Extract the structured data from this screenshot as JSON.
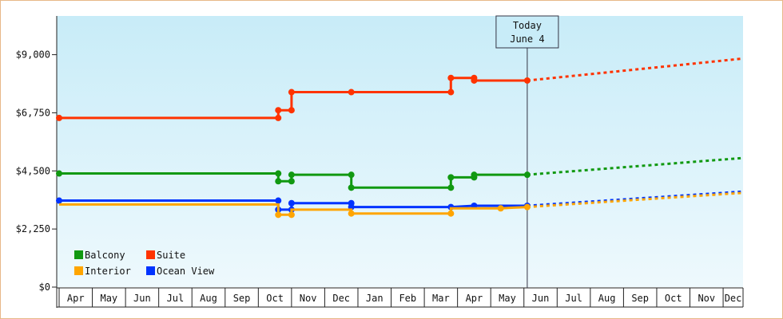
{
  "chart_data": {
    "type": "line",
    "step": true,
    "y_ticks": [
      {
        "value": 0,
        "label": "$0"
      },
      {
        "value": 2250,
        "label": "$2,250"
      },
      {
        "value": 4500,
        "label": "$4,500"
      },
      {
        "value": 6750,
        "label": "$6,750"
      },
      {
        "value": 9000,
        "label": "$9,000"
      }
    ],
    "ylim": [
      0,
      10500
    ],
    "months": [
      "Apr",
      "May",
      "Jun",
      "Jul",
      "Aug",
      "Sep",
      "Oct",
      "Nov",
      "Dec",
      "Jan",
      "Feb",
      "Mar",
      "Apr",
      "May",
      "Jun",
      "Jul",
      "Aug",
      "Sep",
      "Oct",
      "Nov",
      "Dec"
    ],
    "x_range": [
      0,
      20.6
    ],
    "today": {
      "line1": "Today",
      "line2": "June 4",
      "x": 14.1
    },
    "series": [
      {
        "name": "Suite",
        "color": "#ff3300",
        "points": [
          [
            0,
            6550
          ],
          [
            6.6,
            6550
          ],
          [
            6.6,
            6850
          ],
          [
            7.0,
            6850
          ],
          [
            7.0,
            7550
          ],
          [
            8.8,
            7550
          ],
          [
            11.8,
            7550
          ],
          [
            11.8,
            8100
          ],
          [
            12.5,
            8100
          ],
          [
            12.5,
            8000
          ],
          [
            14.1,
            8000
          ]
        ],
        "markers": [
          [
            0,
            6550
          ],
          [
            6.6,
            6550
          ],
          [
            6.6,
            6850
          ],
          [
            7.0,
            6850
          ],
          [
            7.0,
            7550
          ],
          [
            8.8,
            7550
          ],
          [
            11.8,
            7550
          ],
          [
            11.8,
            8100
          ],
          [
            12.5,
            8100
          ],
          [
            12.5,
            8000
          ],
          [
            14.1,
            8000
          ]
        ],
        "projection": [
          [
            14.1,
            8000
          ],
          [
            20.6,
            8850
          ]
        ]
      },
      {
        "name": "Balcony",
        "color": "#119911",
        "points": [
          [
            0,
            4400
          ],
          [
            6.6,
            4400
          ],
          [
            6.6,
            4100
          ],
          [
            7.0,
            4100
          ],
          [
            7.0,
            4350
          ],
          [
            8.8,
            4350
          ],
          [
            8.8,
            3850
          ],
          [
            11.8,
            3850
          ],
          [
            11.8,
            4250
          ],
          [
            12.5,
            4250
          ],
          [
            12.5,
            4350
          ],
          [
            14.1,
            4350
          ]
        ],
        "markers": [
          [
            0,
            4400
          ],
          [
            6.6,
            4400
          ],
          [
            6.6,
            4100
          ],
          [
            7.0,
            4100
          ],
          [
            7.0,
            4350
          ],
          [
            8.8,
            4350
          ],
          [
            8.8,
            3850
          ],
          [
            11.8,
            3850
          ],
          [
            11.8,
            4250
          ],
          [
            12.5,
            4250
          ],
          [
            12.5,
            4350
          ],
          [
            14.1,
            4350
          ]
        ],
        "projection": [
          [
            14.1,
            4350
          ],
          [
            20.6,
            5000
          ]
        ]
      },
      {
        "name": "Ocean View",
        "color": "#0033ff",
        "points": [
          [
            0,
            3350
          ],
          [
            6.6,
            3350
          ],
          [
            6.6,
            3000
          ],
          [
            7.0,
            3000
          ],
          [
            7.0,
            3250
          ],
          [
            8.8,
            3250
          ],
          [
            8.8,
            3100
          ],
          [
            11.8,
            3100
          ],
          [
            12.5,
            3150
          ],
          [
            14.1,
            3150
          ]
        ],
        "markers": [
          [
            0,
            3350
          ],
          [
            6.6,
            3350
          ],
          [
            6.6,
            3000
          ],
          [
            7.0,
            3000
          ],
          [
            7.0,
            3250
          ],
          [
            8.8,
            3250
          ],
          [
            8.8,
            3100
          ],
          [
            11.8,
            3100
          ],
          [
            12.5,
            3150
          ],
          [
            14.1,
            3150
          ]
        ],
        "projection": [
          [
            14.1,
            3150
          ],
          [
            20.6,
            3700
          ]
        ]
      },
      {
        "name": "Interior",
        "color": "#ffa500",
        "points": [
          [
            0,
            3200
          ],
          [
            6.6,
            3200
          ],
          [
            6.6,
            2800
          ],
          [
            7.0,
            2800
          ],
          [
            7.0,
            3000
          ],
          [
            8.8,
            3000
          ],
          [
            8.8,
            2850
          ],
          [
            11.8,
            2850
          ],
          [
            11.8,
            3050
          ],
          [
            13.3,
            3050
          ],
          [
            14.1,
            3100
          ]
        ],
        "markers": [
          [
            6.6,
            2800
          ],
          [
            7.0,
            2800
          ],
          [
            8.8,
            2850
          ],
          [
            11.8,
            2850
          ],
          [
            13.3,
            3050
          ],
          [
            14.1,
            3100
          ]
        ],
        "projection": [
          [
            14.1,
            3100
          ],
          [
            20.6,
            3650
          ]
        ]
      }
    ],
    "legend": [
      {
        "name": "Balcony",
        "color": "#119911"
      },
      {
        "name": "Suite",
        "color": "#ff3300"
      },
      {
        "name": "Interior",
        "color": "#ffa500"
      },
      {
        "name": "Ocean View",
        "color": "#0033ff"
      }
    ],
    "legend_position": "bottom-left"
  }
}
